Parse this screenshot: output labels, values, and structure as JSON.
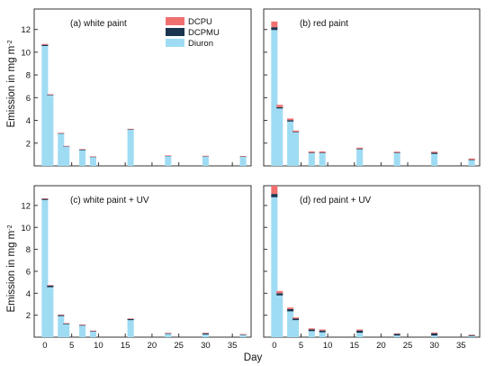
{
  "figure": {
    "ylabel": "Emission in mg m",
    "ylabel_sup": "-2",
    "xlabel": "Day"
  },
  "chart_data": [
    {
      "type": "bar",
      "stacked": true,
      "title": "(a) white paint",
      "xlim": [
        -2,
        38.5
      ],
      "ylim": [
        0,
        13.8
      ],
      "xticks": [
        0,
        5,
        10,
        15,
        20,
        25,
        30,
        35
      ],
      "yticks": [
        2,
        4,
        6,
        8,
        10,
        12
      ],
      "show_xtick_labels": false,
      "show_ytick_labels": true,
      "legend": {
        "placement": "top-right",
        "entries": [
          {
            "name": "DCPU",
            "color": "#f07070"
          },
          {
            "name": "DCPMU",
            "color": "#1a3550"
          },
          {
            "name": "Diuron",
            "color": "#9fdcf3"
          }
        ]
      },
      "x": [
        0,
        1,
        3,
        4,
        7,
        9,
        16,
        23,
        30,
        37
      ],
      "series": [
        {
          "name": "Diuron",
          "color": "#9fdcf3",
          "values": [
            10.55,
            6.2,
            2.85,
            1.72,
            1.4,
            0.8,
            3.2,
            0.88,
            0.85,
            0.82
          ]
        },
        {
          "name": "DCPMU",
          "color": "#1a3550",
          "values": [
            0.1,
            0.05,
            0.03,
            0.02,
            0.03,
            0.02,
            0.03,
            0.02,
            0.02,
            0.02
          ]
        },
        {
          "name": "DCPU",
          "color": "#f07070",
          "values": [
            0.08,
            0.05,
            0.03,
            0.02,
            0.05,
            0.02,
            0.03,
            0.02,
            0.02,
            0.02
          ]
        }
      ]
    },
    {
      "type": "bar",
      "stacked": true,
      "title": "(b) red paint",
      "xlim": [
        -2,
        38.5
      ],
      "ylim": [
        0,
        13.8
      ],
      "xticks": [
        0,
        5,
        10,
        15,
        20,
        25,
        30,
        35
      ],
      "yticks": [
        2,
        4,
        6,
        8,
        10,
        12
      ],
      "show_xtick_labels": false,
      "show_ytick_labels": false,
      "x": [
        0,
        1,
        3,
        4,
        7,
        9,
        16,
        23,
        30,
        37
      ],
      "series": [
        {
          "name": "Diuron",
          "color": "#9fdcf3",
          "values": [
            11.95,
            5.05,
            3.9,
            2.95,
            1.12,
            1.12,
            1.45,
            1.12,
            1.05,
            0.5
          ]
        },
        {
          "name": "DCPMU",
          "color": "#1a3550",
          "values": [
            0.25,
            0.12,
            0.12,
            0.05,
            0.05,
            0.05,
            0.05,
            0.05,
            0.1,
            0.05
          ]
        },
        {
          "name": "DCPU",
          "color": "#f07070",
          "values": [
            0.5,
            0.2,
            0.15,
            0.1,
            0.1,
            0.1,
            0.1,
            0.08,
            0.1,
            0.1
          ]
        }
      ]
    },
    {
      "type": "bar",
      "stacked": true,
      "title": "(c) white paint + UV",
      "xlim": [
        -2,
        38.5
      ],
      "ylim": [
        0,
        13.8
      ],
      "xticks": [
        0,
        5,
        10,
        15,
        20,
        25,
        30,
        35
      ],
      "yticks": [
        2,
        4,
        6,
        8,
        10,
        12
      ],
      "show_xtick_labels": true,
      "show_ytick_labels": true,
      "x": [
        0,
        1,
        3,
        4,
        7,
        9,
        16,
        23,
        30,
        37
      ],
      "series": [
        {
          "name": "Diuron",
          "color": "#9fdcf3",
          "values": [
            12.5,
            4.55,
            1.92,
            1.18,
            1.05,
            0.5,
            1.55,
            0.3,
            0.25,
            0.2
          ]
        },
        {
          "name": "DCPMU",
          "color": "#1a3550",
          "values": [
            0.1,
            0.15,
            0.1,
            0.08,
            0.05,
            0.05,
            0.12,
            0.05,
            0.1,
            0.06
          ]
        },
        {
          "name": "DCPU",
          "color": "#f07070",
          "values": [
            0.05,
            0.05,
            0.03,
            0.02,
            0.05,
            0.05,
            0.03,
            0.05,
            0.05,
            0.02
          ]
        }
      ]
    },
    {
      "type": "bar",
      "stacked": true,
      "title": "(d) red paint + UV",
      "xlim": [
        -2,
        38.5
      ],
      "ylim": [
        0,
        13.8
      ],
      "xticks": [
        0,
        5,
        10,
        15,
        20,
        25,
        30,
        35
      ],
      "yticks": [
        2,
        4,
        6,
        8,
        10,
        12
      ],
      "show_xtick_labels": true,
      "show_ytick_labels": false,
      "x": [
        0,
        1,
        3,
        4,
        7,
        9,
        16,
        23,
        30,
        37
      ],
      "series": [
        {
          "name": "Diuron",
          "color": "#9fdcf3",
          "values": [
            12.75,
            3.8,
            2.35,
            1.55,
            0.55,
            0.45,
            0.4,
            0.15,
            0.15,
            0.1
          ]
        },
        {
          "name": "DCPMU",
          "color": "#1a3550",
          "values": [
            0.3,
            0.2,
            0.2,
            0.15,
            0.15,
            0.15,
            0.2,
            0.15,
            0.2,
            0.08
          ]
        },
        {
          "name": "DCPU",
          "color": "#f07070",
          "values": [
            0.75,
            0.2,
            0.15,
            0.1,
            0.1,
            0.1,
            0.1,
            0.05,
            0.08,
            0.05
          ]
        }
      ]
    }
  ]
}
